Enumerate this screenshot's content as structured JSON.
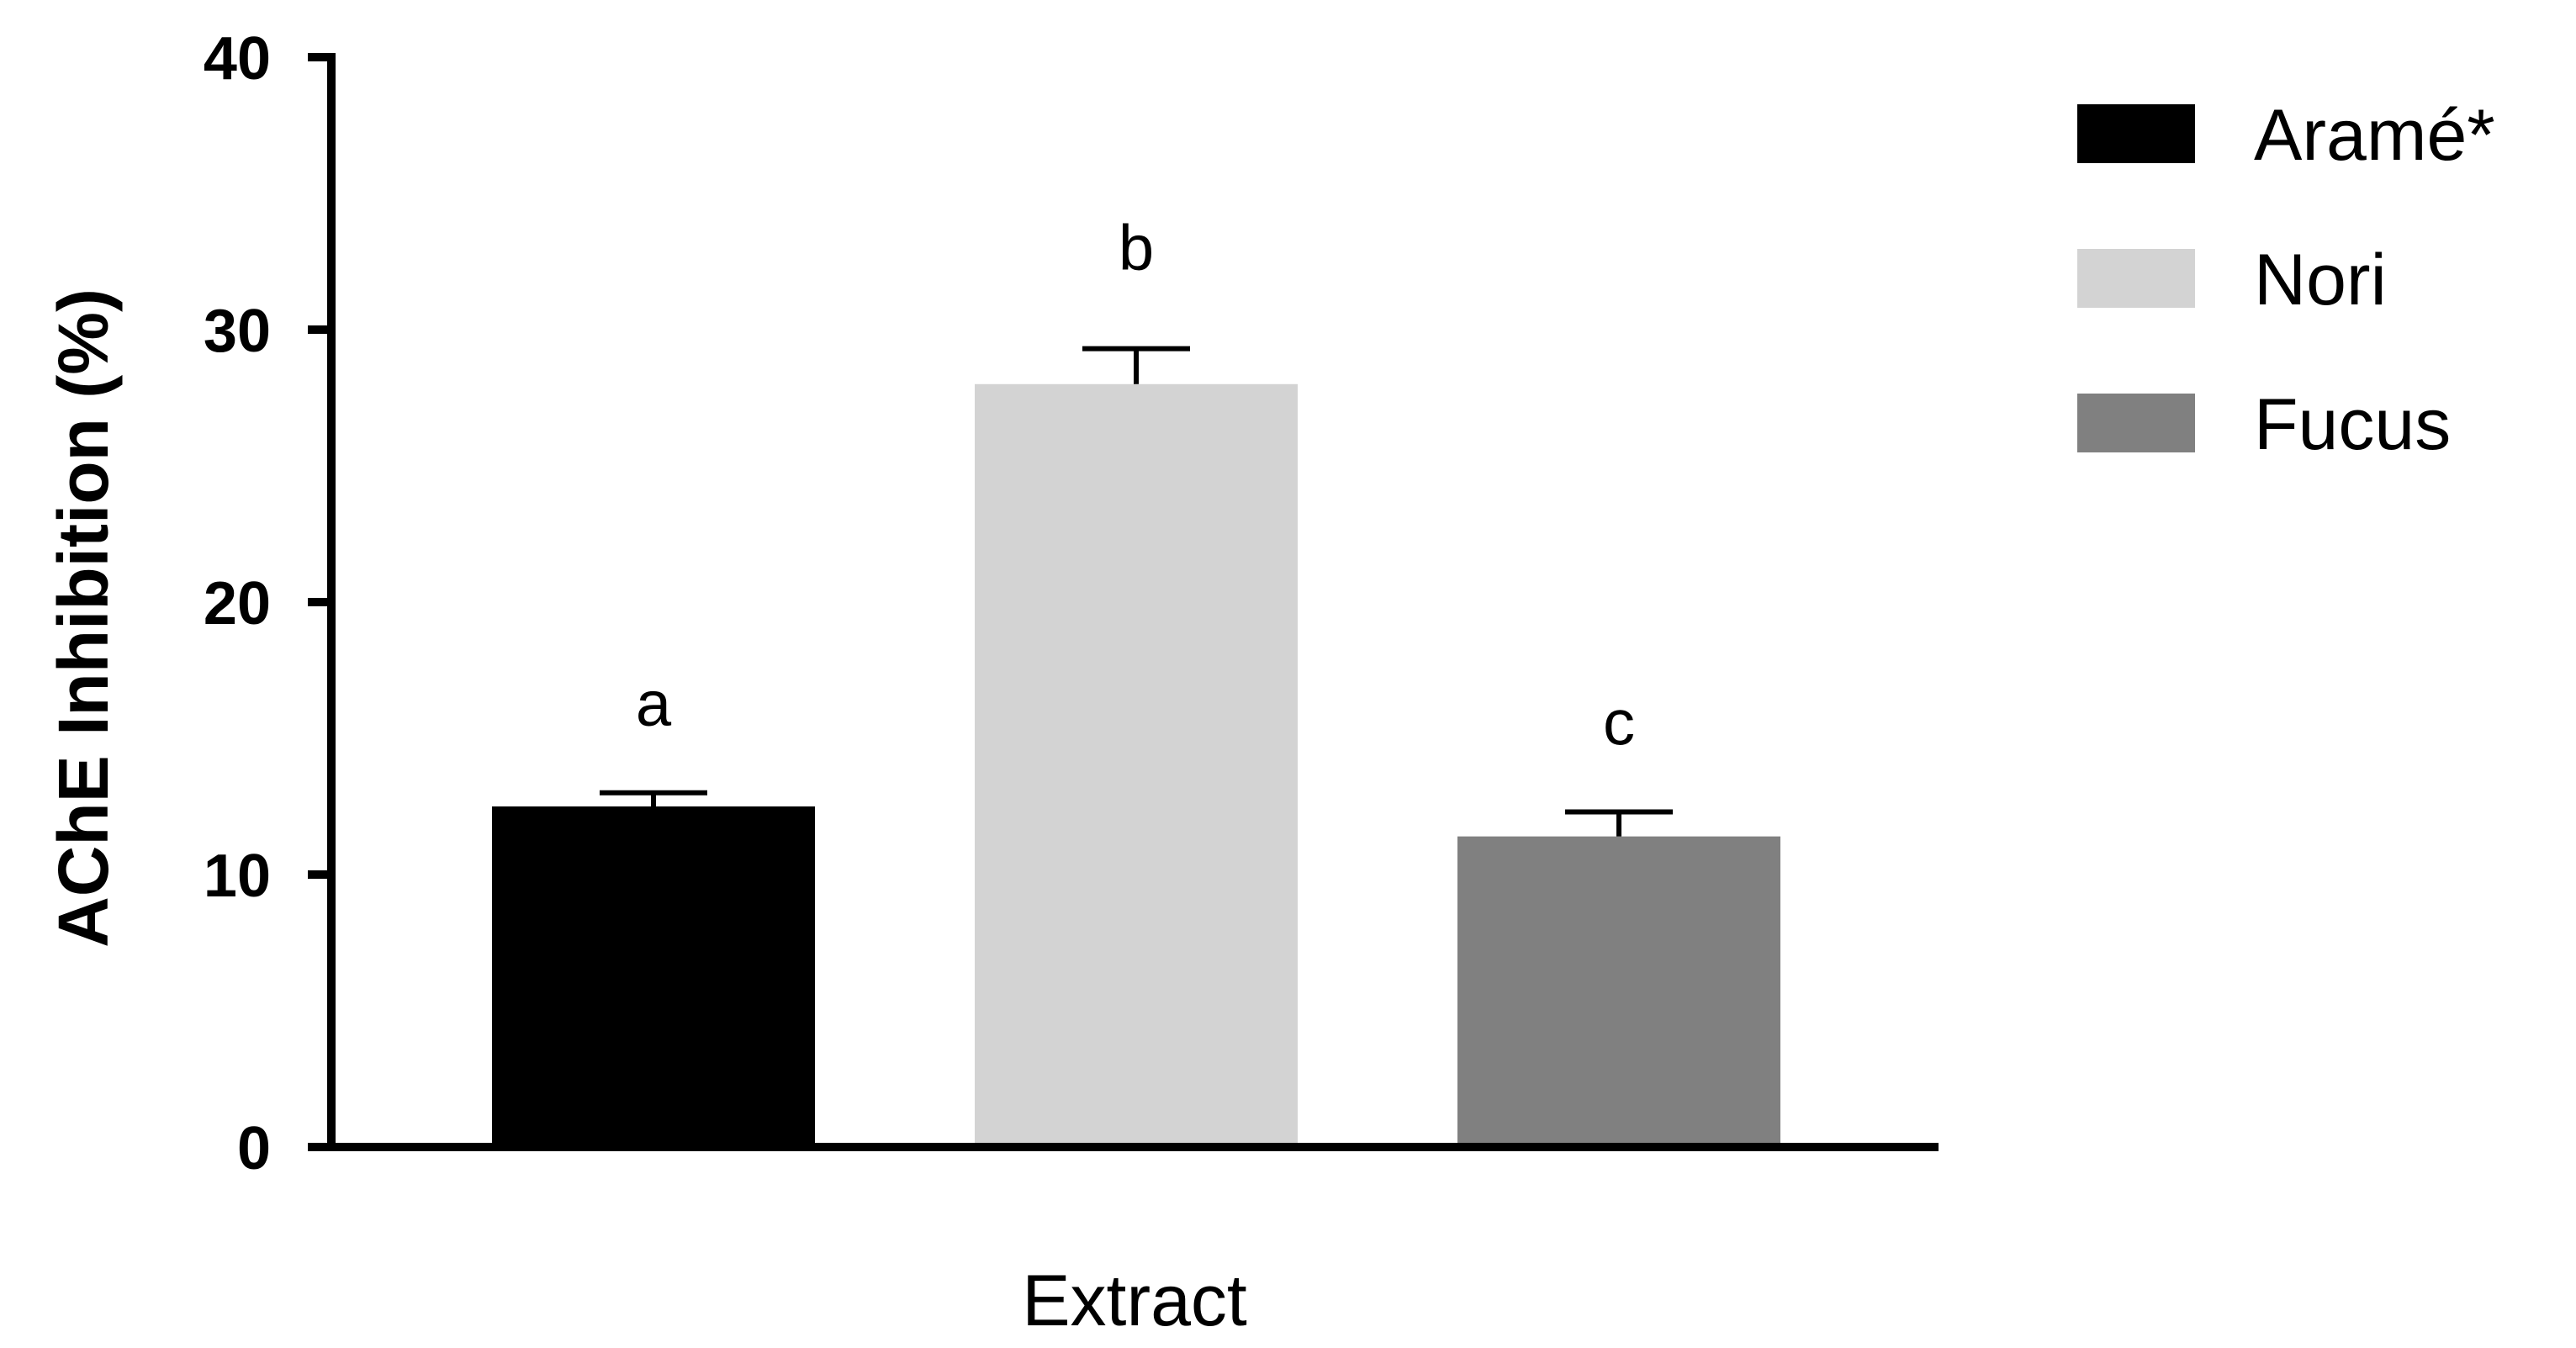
{
  "chart_data": {
    "type": "bar",
    "ylabel": "AChE Inhibition (%)",
    "xlabel": "Extract",
    "ylim": [
      0,
      40
    ],
    "yticks": [
      "0",
      "10",
      "20",
      "30",
      "40"
    ],
    "grid": false,
    "legend_position": "top-right",
    "series": [
      {
        "name": "Aramé*",
        "value": 12.5,
        "error": 0.5,
        "color": "#000000",
        "sig_label": "a"
      },
      {
        "name": "Nori",
        "value": 28.0,
        "error": 1.3,
        "color": "#d3d3d3",
        "sig_label": "b"
      },
      {
        "name": "Fucus",
        "value": 11.4,
        "error": 0.9,
        "color": "#808080",
        "sig_label": "c"
      }
    ]
  }
}
